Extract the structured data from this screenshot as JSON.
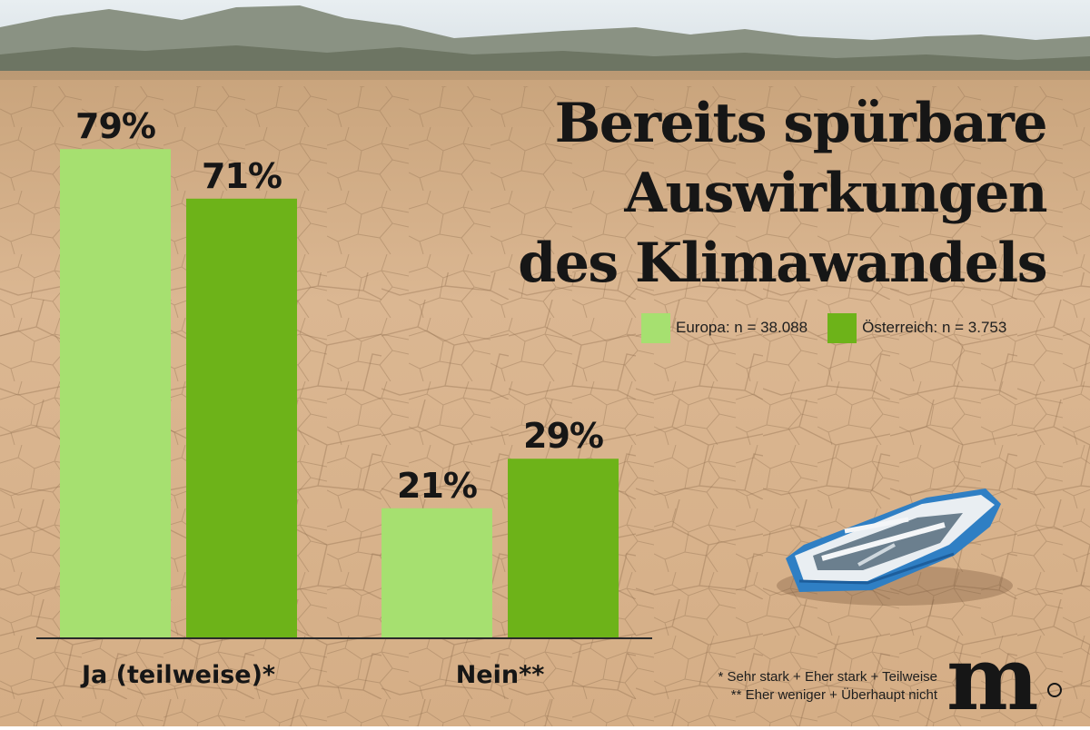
{
  "title_lines": [
    "Bereits spürbare",
    "Auswirkungen",
    "des Klimawandels"
  ],
  "legend": [
    {
      "label": "Europa: n = 38.088",
      "color": "#a6e070"
    },
    {
      "label": "Österreich: n = 3.753",
      "color": "#6db319"
    }
  ],
  "chart_data": {
    "type": "bar",
    "categories": [
      "Ja (teilweise)*",
      "Nein**"
    ],
    "series": [
      {
        "name": "Europa: n = 38.088",
        "values": [
          79,
          21
        ],
        "labels": [
          "79%",
          "21%"
        ],
        "color": "#a6e070"
      },
      {
        "name": "Österreich: n = 3.753",
        "values": [
          71,
          29
        ],
        "labels": [
          "71%",
          "29%"
        ],
        "color": "#6db319"
      }
    ],
    "ylim": [
      0,
      100
    ],
    "grid": false,
    "legend_position": "top-right"
  },
  "footnotes": [
    "* Sehr stark + Eher stark + Teilweise",
    "** Eher weniger + Überhaupt nicht"
  ],
  "logo_text": "m",
  "background": {
    "sky": "#dfe6ea",
    "mountains": "#7c8678",
    "ground": "#d8b48e"
  },
  "illustration": {
    "name": "stranded rowboat on dry cracked lakebed",
    "hull_color": "#2f7fc4"
  }
}
